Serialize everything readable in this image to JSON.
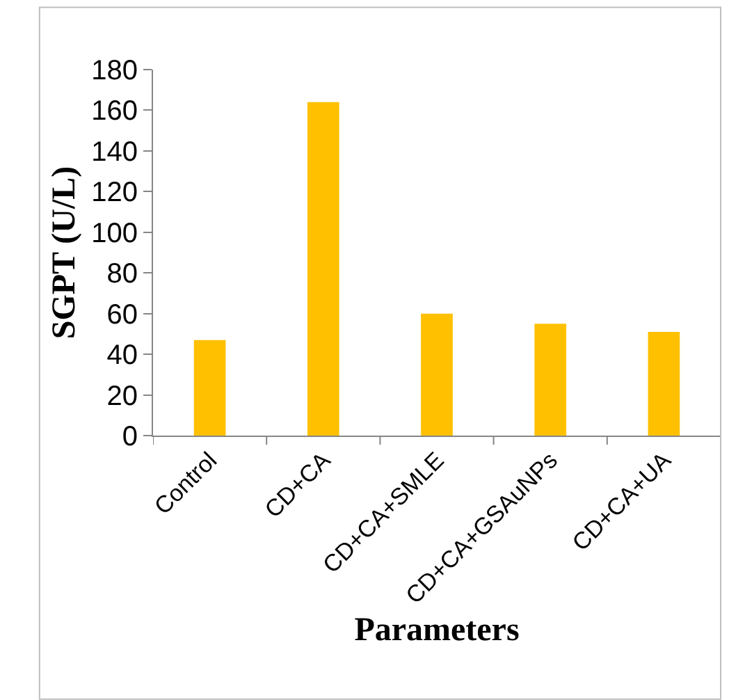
{
  "chart_data": {
    "type": "bar",
    "xlabel": "Parameters",
    "ylabel": "SGPT (U/L)",
    "categories": [
      "Control",
      "CD+CA",
      "CD+CA+SMLE",
      "CD+CA+GSAuNPs",
      "CD+CA+UA"
    ],
    "values": [
      47,
      164,
      60,
      55,
      51
    ],
    "color": "#ffc000",
    "ylim": [
      0,
      180
    ],
    "yticks": [
      0,
      20,
      40,
      60,
      80,
      100,
      120,
      140,
      160,
      180
    ]
  }
}
